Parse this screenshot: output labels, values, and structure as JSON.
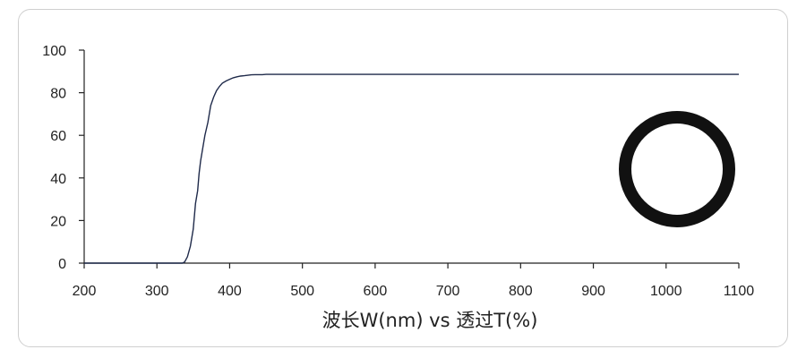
{
  "chart_data": {
    "type": "line",
    "title": "",
    "xlabel": "波长W(nm) vs 透过T(%)",
    "ylabel": "",
    "xlim": [
      200,
      1100
    ],
    "ylim": [
      0,
      100
    ],
    "xticks": [
      200,
      300,
      400,
      500,
      600,
      700,
      800,
      900,
      1000,
      1100
    ],
    "yticks": [
      0,
      20,
      40,
      60,
      80,
      100
    ],
    "grid": false,
    "legend": "none",
    "series": [
      {
        "color": "#1f2a4a",
        "x": [
          200,
          335,
          338,
          342,
          346,
          350,
          353,
          356,
          358,
          360,
          363,
          366,
          370,
          374,
          378,
          382,
          386,
          390,
          395,
          400,
          405,
          410,
          415,
          420,
          425,
          430,
          435,
          440,
          445,
          450,
          500,
          600,
          700,
          800,
          900,
          1000,
          1100
        ],
        "y": [
          0,
          0,
          0.5,
          3,
          8,
          16,
          28,
          34,
          42,
          48,
          54,
          60,
          66,
          74,
          78,
          81,
          83,
          84.5,
          85.5,
          86.3,
          87,
          87.5,
          87.8,
          88,
          88.2,
          88.4,
          88.5,
          88.5,
          88.5,
          88.6,
          88.6,
          88.6,
          88.6,
          88.6,
          88.6,
          88.6,
          88.6
        ]
      }
    ]
  },
  "inset": {
    "icon": "ring-icon",
    "color": "#111111"
  }
}
